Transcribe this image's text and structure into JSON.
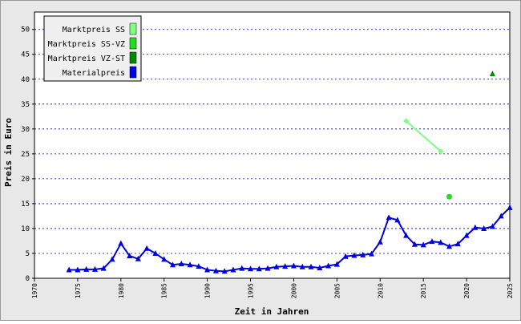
{
  "chart_data": {
    "type": "line",
    "xlabel": "Zeit in Jahren",
    "ylabel": "Preis in Euro",
    "xlim": [
      1970,
      2025
    ],
    "xticks": [
      1970,
      1975,
      1980,
      1985,
      1990,
      1995,
      2000,
      2005,
      2010,
      2015,
      2020,
      2025
    ],
    "ylim": [
      0,
      53.5
    ],
    "yticks": [
      0,
      5,
      10,
      15,
      20,
      25,
      30,
      35,
      40,
      45,
      50
    ],
    "grid": true,
    "legend": "upper left",
    "series": [
      {
        "name": "Marktpreis SS",
        "color": "#80ff80",
        "marker": "diamond",
        "x": [
          2013,
          2017
        ],
        "values": [
          31.6,
          25.5
        ]
      },
      {
        "name": "Marktpreis SS-VZ",
        "color": "#22dd22",
        "marker": "circle",
        "x": [
          2018
        ],
        "values": [
          16.4
        ]
      },
      {
        "name": "Marktpreis VZ-ST",
        "color": "#008800",
        "marker": "triangle",
        "x": [
          2023
        ],
        "values": [
          41.1
        ]
      },
      {
        "name": "Materialpreis",
        "color": "#0000dd",
        "marker": "triangle",
        "x": [
          1974,
          1975,
          1976,
          1977,
          1978,
          1979,
          1980,
          1981,
          1982,
          1983,
          1984,
          1985,
          1986,
          1987,
          1988,
          1989,
          1990,
          1991,
          1992,
          1993,
          1994,
          1995,
          1996,
          1997,
          1998,
          1999,
          2000,
          2001,
          2002,
          2003,
          2004,
          2005,
          2006,
          2007,
          2008,
          2009,
          2010,
          2011,
          2012,
          2013,
          2014,
          2015,
          2016,
          2017,
          2018,
          2019,
          2020,
          2021,
          2022,
          2023,
          2024,
          2025
        ],
        "values": [
          1.7,
          1.7,
          1.8,
          1.8,
          2.0,
          3.8,
          7.0,
          4.5,
          3.9,
          6.0,
          5.0,
          3.8,
          2.7,
          2.9,
          2.7,
          2.4,
          1.7,
          1.5,
          1.4,
          1.7,
          2.0,
          1.9,
          1.9,
          2.0,
          2.3,
          2.4,
          2.5,
          2.3,
          2.3,
          2.1,
          2.5,
          2.8,
          4.4,
          4.6,
          4.7,
          4.9,
          7.3,
          12.2,
          11.7,
          8.6,
          6.8,
          6.7,
          7.4,
          7.2,
          6.4,
          6.9,
          8.6,
          10.2,
          10.0,
          10.4,
          12.5,
          14.2
        ]
      }
    ]
  }
}
